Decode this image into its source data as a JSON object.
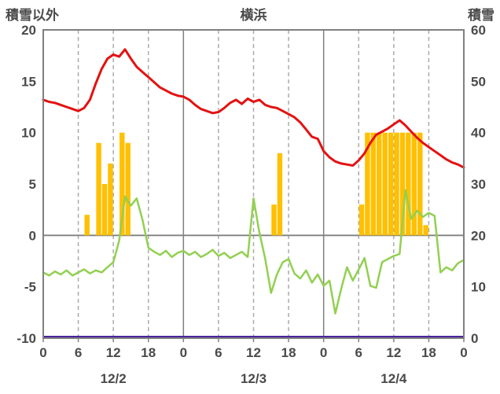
{
  "chart_data": {
    "type": "line",
    "title": "横浜",
    "left_axis": {
      "label": "積雪以外",
      "min": -10,
      "max": 20,
      "ticks": [
        20,
        15,
        10,
        5,
        0,
        -5,
        -10
      ]
    },
    "right_axis": {
      "label": "積雪",
      "min": 0,
      "max": 60,
      "ticks": [
        60,
        50,
        40,
        30,
        20,
        10,
        0
      ]
    },
    "x_axis": {
      "hours_total": 72,
      "tick_interval": 6,
      "tick_labels": [
        "0",
        "6",
        "12",
        "18",
        "0",
        "6",
        "12",
        "18",
        "0",
        "6",
        "12",
        "18",
        "0"
      ],
      "day_labels": [
        "12/2",
        "12/3",
        "12/4"
      ]
    },
    "colors": {
      "red_line": "#e31212",
      "green_line": "#92d050",
      "bars": "#ffc000",
      "snow_line": "#4a23a0",
      "grid_dashed": "#ababab",
      "grid_solid": "#808080",
      "text": "#4a4a4a"
    },
    "series": [
      {
        "name": "red-line",
        "axis": "left",
        "values": [
          13.2,
          13.0,
          12.9,
          12.7,
          12.5,
          12.3,
          12.1,
          12.4,
          13.2,
          14.8,
          16.2,
          17.2,
          17.6,
          17.4,
          18.1,
          17.2,
          16.4,
          15.9,
          15.4,
          14.9,
          14.4,
          14.1,
          13.8,
          13.6,
          13.5,
          13.2,
          12.7,
          12.3,
          12.1,
          11.9,
          12.0,
          12.4,
          12.9,
          13.2,
          12.8,
          13.3,
          13.0,
          13.2,
          12.7,
          12.5,
          12.4,
          12.1,
          11.8,
          11.5,
          11.0,
          10.3,
          9.6,
          9.4,
          8.2,
          7.6,
          7.2,
          7.0,
          6.9,
          6.8,
          7.3,
          8.0,
          9.0,
          9.8,
          10.1,
          10.4,
          10.8,
          11.2,
          10.7,
          10.1,
          9.5,
          9.0,
          8.6,
          8.2,
          7.8,
          7.4,
          7.1,
          6.9,
          6.6
        ]
      },
      {
        "name": "green-line",
        "axis": "left",
        "values": [
          -3.6,
          -3.9,
          -3.5,
          -3.8,
          -3.4,
          -3.9,
          -3.6,
          -3.3,
          -3.7,
          -3.4,
          -3.6,
          -3.1,
          -2.6,
          -0.5,
          3.8,
          2.9,
          3.6,
          1.5,
          -1.2,
          -1.6,
          -1.9,
          -1.5,
          -2.1,
          -1.7,
          -1.5,
          -1.9,
          -1.6,
          -2.1,
          -1.8,
          -1.4,
          -2.0,
          -1.7,
          -2.2,
          -1.9,
          -1.6,
          -2.1,
          3.6,
          0.3,
          -2.3,
          -5.6,
          -3.8,
          -2.6,
          -2.3,
          -3.7,
          -4.2,
          -3.4,
          -4.6,
          -3.8,
          -4.9,
          -4.4,
          -7.6,
          -5.2,
          -3.1,
          -4.4,
          -3.3,
          -2.2,
          -4.9,
          -5.1,
          -2.6,
          -2.3,
          -2.0,
          -1.8,
          4.4,
          1.6,
          2.4,
          1.8,
          2.2,
          1.9,
          -3.6,
          -3.1,
          -3.4,
          -2.7,
          -2.4
        ]
      },
      {
        "name": "snow-depth-line",
        "axis": "right",
        "constant": 0
      }
    ],
    "bars": {
      "name": "precipitation-bars",
      "axis": "left",
      "entries": [
        [
          7,
          2
        ],
        [
          9,
          9
        ],
        [
          10,
          5
        ],
        [
          11,
          7
        ],
        [
          13,
          10
        ],
        [
          14,
          9
        ],
        [
          39,
          3
        ],
        [
          40,
          8
        ],
        [
          54,
          3
        ],
        [
          55,
          10
        ],
        [
          56,
          10
        ],
        [
          57,
          10
        ],
        [
          58,
          10
        ],
        [
          59,
          10
        ],
        [
          60,
          10
        ],
        [
          61,
          10
        ],
        [
          62,
          10
        ],
        [
          63,
          10
        ],
        [
          64,
          10
        ],
        [
          65,
          1
        ]
      ]
    }
  }
}
